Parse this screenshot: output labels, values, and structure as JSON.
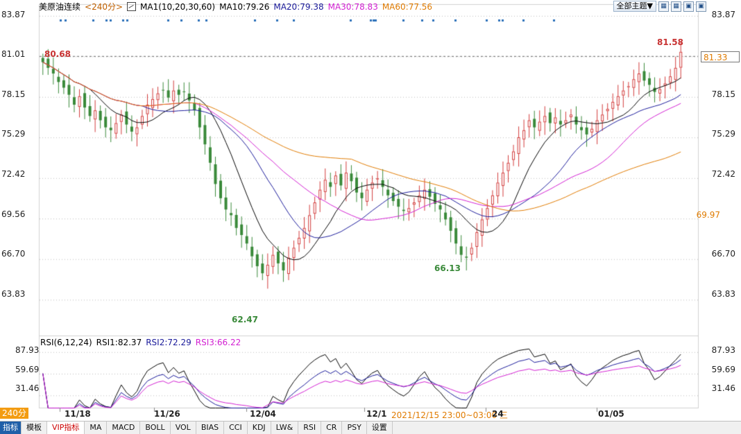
{
  "header": {
    "instrument": "美原油连续",
    "period": "<240分>",
    "ma_label": "MA1(10,20,30,60)",
    "ma10": "MA10:79.26",
    "ma20": "MA20:79.38",
    "ma30": "MA30:78.83",
    "ma60": "MA60:77.56",
    "theme_button": "全部主题▼",
    "icons": [
      "grid-icon",
      "grid-icon",
      "window-icon",
      "window-icon"
    ]
  },
  "price_axis": {
    "labels": [
      "83.87",
      "81.01",
      "78.15",
      "75.29",
      "72.42",
      "69.56",
      "66.70",
      "63.83"
    ],
    "right_tags": [
      "81.33",
      "69.97"
    ],
    "current_price_line": "81.01"
  },
  "extremes": {
    "high_left": "80.68",
    "high_right": "81.58",
    "low_main": "62.47",
    "low_second": "66.13"
  },
  "rsi": {
    "label": "RSI(6,12,24)",
    "rsi1": "RSI1:82.37",
    "rsi2": "RSI2:72.29",
    "rsi3": "RSI3:66.22",
    "axis": [
      "87.93",
      "59.69",
      "31.46"
    ]
  },
  "x_axis": {
    "labels": [
      "11/18",
      "11/26",
      "12/04",
      "12/1",
      "24",
      "01/05"
    ],
    "crosshair_time": "2021/12/15 23:00~03:00 三"
  },
  "bottom": {
    "period_badge": "240分",
    "tabs": [
      "指标",
      "模板",
      "VIP指标",
      "MA",
      "MACD",
      "BOLL",
      "VOL",
      "BIAS",
      "CCI",
      "KDJ",
      "LW&",
      "RSI",
      "CR",
      "PSY",
      "设置"
    ]
  },
  "colors": {
    "ma10": "#000000",
    "ma20": "#1a1a9a",
    "ma30": "#d21fd2",
    "ma60": "#e07b00",
    "candle_up": "#d23b3b",
    "candle_down": "#3a8a3a",
    "extreme_red": "#c83232",
    "extreme_green": "#3a8a3a"
  },
  "chart_data": {
    "type": "candlestick",
    "ylim": [
      61.5,
      84.5
    ],
    "closes": [
      80.6,
      80.2,
      79.8,
      79.2,
      78.8,
      78.3,
      77.6,
      78.2,
      77.4,
      76.8,
      77.2,
      76.5,
      76.0,
      75.8,
      76.3,
      76.9,
      76.2,
      75.7,
      76.0,
      76.8,
      77.6,
      78.0,
      78.4,
      78.6,
      78.1,
      78.6,
      78.3,
      78.5,
      77.9,
      77.2,
      76.0,
      74.8,
      73.5,
      72.0,
      71.0,
      70.2,
      69.8,
      68.9,
      68.4,
      67.8,
      66.9,
      66.2,
      65.7,
      66.3,
      67.0,
      66.4,
      65.9,
      66.8,
      67.5,
      68.2,
      68.9,
      69.8,
      70.7,
      71.6,
      72.3,
      71.8,
      72.6,
      71.9,
      72.8,
      72.2,
      71.4,
      71.0,
      71.6,
      72.1,
      72.4,
      71.8,
      71.2,
      70.8,
      70.4,
      70.1,
      70.3,
      70.7,
      71.2,
      71.6,
      71.1,
      70.6,
      70.2,
      69.5,
      68.7,
      67.8,
      67.0,
      66.8,
      67.5,
      68.6,
      69.5,
      70.3,
      71.2,
      72.1,
      72.8,
      73.5,
      74.3,
      75.3,
      75.8,
      76.5,
      76.0,
      76.4,
      76.8,
      76.3,
      76.7,
      76.2,
      76.5,
      76.9,
      76.2,
      75.8,
      75.5,
      75.9,
      76.5,
      76.9,
      77.3,
      77.8,
      78.2,
      78.6,
      78.9,
      79.4,
      79.8,
      79.3,
      79.0,
      78.5,
      78.7,
      79.1,
      79.6,
      80.2,
      81.33
    ]
  }
}
